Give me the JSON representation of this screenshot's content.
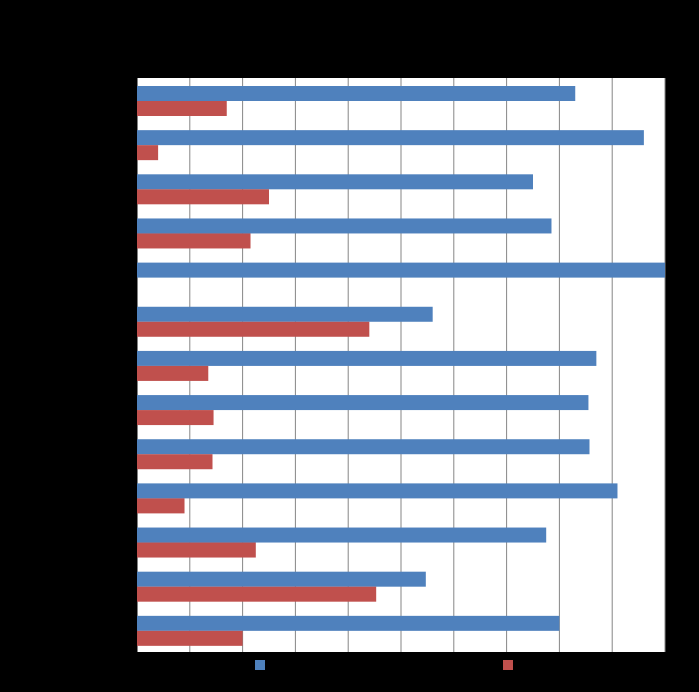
{
  "chart_data": {
    "type": "bar",
    "orientation": "horizontal",
    "title": "",
    "xlabel": "",
    "ylabel": "",
    "categories": [
      "",
      "",
      "",
      "",
      "",
      "",
      "",
      "",
      "",
      "",
      "",
      "",
      ""
    ],
    "series": [
      {
        "name": "",
        "color": "#4F81BD",
        "values": [
          83,
          96,
          75,
          78.5,
          100,
          56,
          87,
          85.5,
          85.7,
          91,
          77.5,
          54.7,
          80
        ]
      },
      {
        "name": "",
        "color": "#C0504D",
        "values": [
          17,
          4,
          25,
          21.5,
          0,
          44,
          13.5,
          14.5,
          14.3,
          9,
          22.5,
          45.3,
          20
        ]
      }
    ],
    "xlim": [
      0,
      100
    ],
    "x_gridlines": [
      0,
      10,
      20,
      30,
      40,
      50,
      60,
      70,
      80,
      90,
      100
    ],
    "grid": true,
    "legend_position": "bottom",
    "background": "#000000",
    "plot_background": "#FFFFFF",
    "gridline_color": "#868686"
  }
}
